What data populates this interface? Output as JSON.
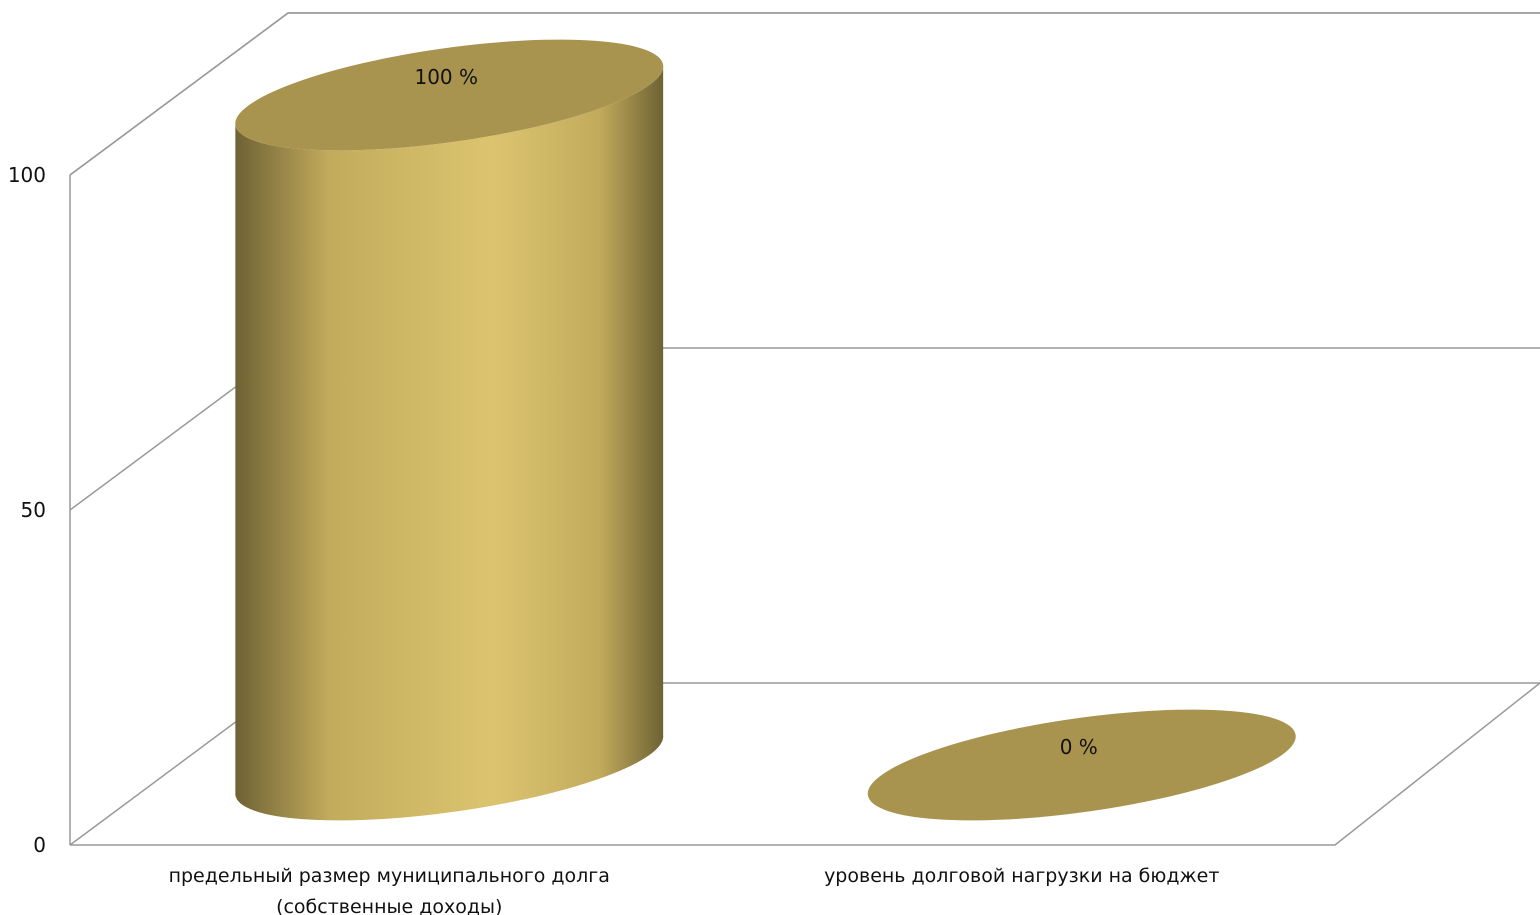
{
  "chart_data": {
    "type": "bar",
    "style": "3d-cylinder",
    "categories": [
      [
        "предельный размер муниципального долга",
        "(собственные доходы)"
      ],
      [
        "уровень долговой нагрузки на бюджет"
      ]
    ],
    "values": [
      100,
      0
    ],
    "data_labels": [
      "100 %",
      "0 %"
    ],
    "y_ticks": [
      0,
      50,
      100
    ],
    "ylim": [
      0,
      100
    ],
    "grid": true,
    "legend": "none",
    "colors": {
      "bar_light": "#dcc46f",
      "bar_mid": "#c2ab5c",
      "bar_dark": "#6e6234",
      "bar_top": "#a8944f",
      "grid": "#999999"
    }
  }
}
